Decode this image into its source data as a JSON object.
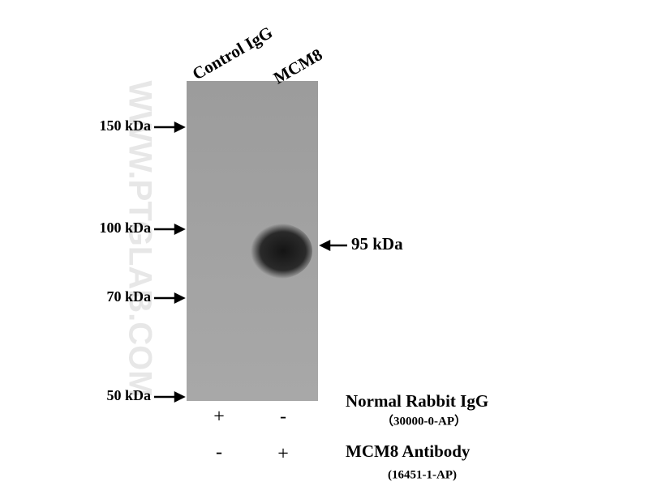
{
  "lanes": [
    "Control IgG",
    "MCM8"
  ],
  "markers": [
    "150 kDa",
    "100 kDa",
    "70 kDa",
    "50 kDa"
  ],
  "band_label": "95 kDa",
  "watermark": "WWW.PTGLAB.COM",
  "reagents": [
    {
      "name": "Normal Rabbit IgG",
      "catalog": "（30000-0-AP）",
      "signs": [
        "+",
        "-"
      ]
    },
    {
      "name": "MCM8 Antibody",
      "catalog": "(16451-1-AP)",
      "signs": [
        "-",
        "+"
      ]
    }
  ]
}
